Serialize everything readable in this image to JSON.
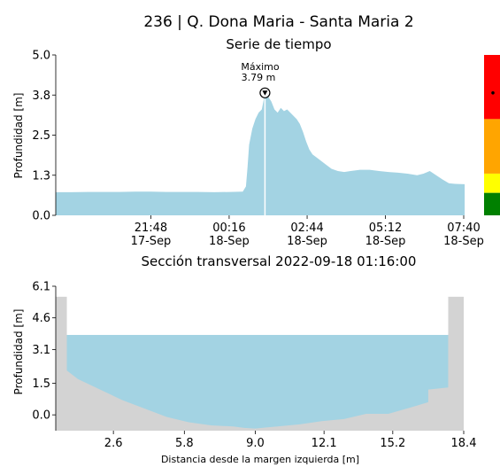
{
  "title": "236 | Q. Dona Maria - Santa Maria 2",
  "chart_data": [
    {
      "type": "area",
      "title": "Serie de tiempo",
      "xlabel": "",
      "ylabel": "Profundidad [m]",
      "ylim": [
        0,
        5.0
      ],
      "yticks": [
        "0.0",
        "1.3",
        "2.5",
        "3.8",
        "5.0"
      ],
      "xticks": [
        {
          "t": 3.0,
          "line1": "21:48",
          "line2": "17-Sep"
        },
        {
          "t": 5.47,
          "line1": "00:16",
          "line2": "18-Sep"
        },
        {
          "t": 7.93,
          "line1": "02:44",
          "line2": "18-Sep"
        },
        {
          "t": 10.4,
          "line1": "05:12",
          "line2": "18-Sep"
        },
        {
          "t": 12.87,
          "line1": "07:40",
          "line2": "18-Sep"
        }
      ],
      "series": [
        {
          "color": "#a3d3e3",
          "x": [
            0,
            0.5,
            1,
            1.5,
            2,
            2.5,
            3,
            3.5,
            4,
            4.5,
            5,
            5.5,
            5.9,
            6.0,
            6.05,
            6.1,
            6.2,
            6.3,
            6.4,
            6.5,
            6.6,
            6.7,
            6.8,
            6.9,
            7.0,
            7.1,
            7.2,
            7.3,
            7.4,
            7.5,
            7.6,
            7.7,
            7.8,
            7.9,
            8.0,
            8.1,
            8.3,
            8.5,
            8.7,
            8.9,
            9.1,
            9.3,
            9.6,
            9.9,
            10.2,
            10.5,
            10.8,
            11.1,
            11.4,
            11.6,
            11.8,
            12.0,
            12.2,
            12.4,
            12.6,
            12.9
          ],
          "y": [
            0.72,
            0.72,
            0.73,
            0.73,
            0.73,
            0.74,
            0.74,
            0.73,
            0.73,
            0.73,
            0.72,
            0.73,
            0.74,
            0.9,
            1.5,
            2.2,
            2.7,
            3.0,
            3.2,
            3.3,
            3.79,
            3.7,
            3.55,
            3.3,
            3.2,
            3.35,
            3.25,
            3.3,
            3.2,
            3.1,
            3.0,
            2.85,
            2.6,
            2.3,
            2.05,
            1.9,
            1.75,
            1.6,
            1.45,
            1.38,
            1.35,
            1.38,
            1.42,
            1.42,
            1.38,
            1.35,
            1.33,
            1.3,
            1.25,
            1.3,
            1.38,
            1.25,
            1.12,
            1.0,
            0.98,
            0.97
          ]
        }
      ],
      "annotation": {
        "label": "Máximo",
        "value": "3.79 m",
        "t": 6.6,
        "y": 3.79
      },
      "cursor_t": 6.6,
      "alert_levels": [
        {
          "color": "#ff0000",
          "from": 3.0,
          "to": 5.0
        },
        {
          "color": "#ffa500",
          "from": 1.3,
          "to": 3.0
        },
        {
          "color": "#ffff00",
          "from": 0.7,
          "to": 1.3
        },
        {
          "color": "#008000",
          "from": 0.0,
          "to": 0.7
        }
      ],
      "current_level": 3.79
    },
    {
      "type": "area",
      "title": "Sección transversal 2022-09-18 01:16:00",
      "xlabel": "Distancia desde la margen izquierda [m]",
      "ylabel": "Profundidad [m]",
      "xlim": [
        0,
        18.4
      ],
      "ylim": [
        -0.75,
        6.1
      ],
      "xticks": [
        "2.6",
        "5.8",
        "9.0",
        "12.1",
        "15.2",
        "18.4"
      ],
      "yticks": [
        "0.0",
        "1.5",
        "3.1",
        "4.6",
        "6.1"
      ],
      "water_level": 3.79,
      "water_color": "#a3d3e3",
      "ground_color": "#d3d3d3",
      "ground": {
        "x": [
          0,
          0.5,
          0.5,
          1.0,
          2.0,
          3.0,
          4.0,
          5.0,
          6.0,
          7.0,
          8.0,
          8.5,
          9.0,
          9.5,
          10.0,
          11.0,
          12.0,
          13.0,
          14.0,
          15.0,
          16.0,
          16.8,
          16.8,
          17.7,
          17.7,
          18.4
        ],
        "y": [
          5.6,
          5.6,
          2.1,
          1.7,
          1.2,
          0.7,
          0.3,
          -0.1,
          -0.35,
          -0.5,
          -0.55,
          -0.62,
          -0.65,
          -0.6,
          -0.55,
          -0.45,
          -0.3,
          -0.2,
          0.05,
          0.05,
          0.35,
          0.6,
          1.2,
          1.3,
          5.6,
          5.6
        ]
      }
    }
  ]
}
